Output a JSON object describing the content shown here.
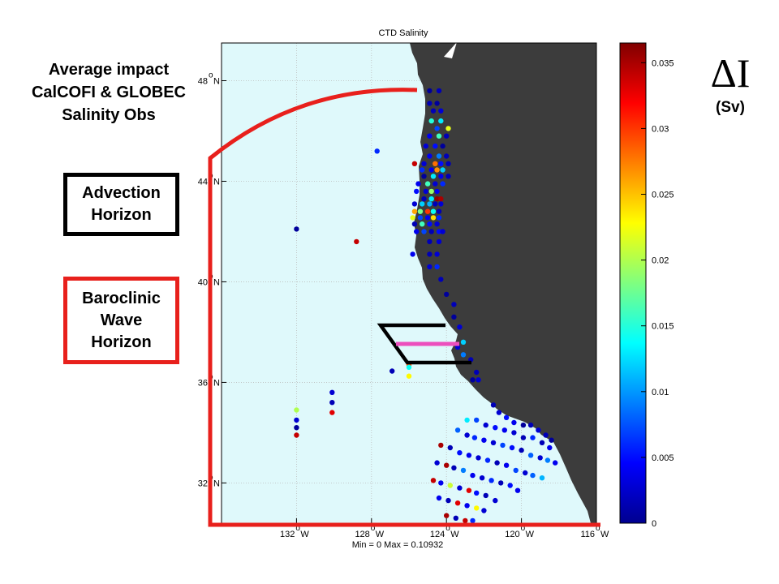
{
  "plot": {
    "title": "CTD Salinity",
    "footer": "Min = 0 Max = 0.10932",
    "lat_ticks": [
      {
        "value": 48,
        "deg": "48",
        "hemi": "N"
      },
      {
        "value": 44,
        "deg": "44",
        "hemi": "N"
      },
      {
        "value": 40,
        "deg": "40",
        "hemi": "N"
      },
      {
        "value": 36,
        "deg": "36",
        "hemi": "N"
      },
      {
        "value": 32,
        "deg": "32",
        "hemi": "N"
      }
    ],
    "lon_ticks": [
      {
        "value": -132,
        "deg": "132",
        "hemi": "W"
      },
      {
        "value": -128,
        "deg": "128",
        "hemi": "W"
      },
      {
        "value": -124,
        "deg": "124",
        "hemi": "W"
      },
      {
        "value": -120,
        "deg": "120",
        "hemi": "W"
      },
      {
        "value": -116,
        "deg": "116",
        "hemi": "W"
      }
    ],
    "lon_range": [
      -136,
      -116
    ],
    "lat_range": [
      30.4,
      49.5
    ],
    "colors": {
      "ocean": "#dff9fb",
      "land": "#3c3c3c",
      "grid": "#bcbcbc"
    }
  },
  "colorbar": {
    "ticks": [
      "0.035",
      "0.03",
      "0.025",
      "0.02",
      "0.015",
      "0.01",
      "0.005",
      "0"
    ],
    "tick_values": [
      0.035,
      0.03,
      0.025,
      0.02,
      0.015,
      0.01,
      0.005,
      0
    ],
    "range": [
      0,
      0.0365
    ],
    "colormap": "jet"
  },
  "annotation": {
    "title_lines": [
      "Average impact",
      "CalCOFI & GLOBEC",
      "Salinity Obs"
    ],
    "symbol": "ΔI",
    "unit": "(Sv)"
  },
  "legend": {
    "advection": {
      "lines": [
        "Advection",
        "Horizon"
      ],
      "color": "#000000"
    },
    "baroclinic": {
      "lines": [
        "Baroclinic",
        "Wave",
        "Horizon"
      ],
      "color": "#e8201c"
    }
  },
  "colors": {
    "red_curve": "#e8201c",
    "section_line": "#ec4fbd"
  },
  "stations": [
    {
      "lon": -124.9,
      "lat": 47.6,
      "v": 0.001
    },
    {
      "lon": -124.4,
      "lat": 47.6,
      "v": 0.002
    },
    {
      "lon": -124.9,
      "lat": 47.1,
      "v": 0.002
    },
    {
      "lon": -124.5,
      "lat": 47.1,
      "v": 0.001
    },
    {
      "lon": -124.7,
      "lat": 46.8,
      "v": 0.002
    },
    {
      "lon": -124.3,
      "lat": 46.8,
      "v": 0.003
    },
    {
      "lon": -124.8,
      "lat": 46.4,
      "v": 0.015
    },
    {
      "lon": -124.3,
      "lat": 46.4,
      "v": 0.013
    },
    {
      "lon": -124.5,
      "lat": 46.1,
      "v": 0.007
    },
    {
      "lon": -123.9,
      "lat": 46.1,
      "v": 0.022
    },
    {
      "lon": -124.9,
      "lat": 45.8,
      "v": 0.004
    },
    {
      "lon": -124.4,
      "lat": 45.8,
      "v": 0.016
    },
    {
      "lon": -124.0,
      "lat": 45.8,
      "v": 0.002
    },
    {
      "lon": -125.1,
      "lat": 45.4,
      "v": 0.003
    },
    {
      "lon": -124.6,
      "lat": 45.4,
      "v": 0.005
    },
    {
      "lon": -124.2,
      "lat": 45.4,
      "v": 0.001
    },
    {
      "lon": -127.7,
      "lat": 45.2,
      "v": 0.006
    },
    {
      "lon": -124.9,
      "lat": 45.0,
      "v": 0.004
    },
    {
      "lon": -124.4,
      "lat": 45.0,
      "v": 0.009
    },
    {
      "lon": -124.0,
      "lat": 45.0,
      "v": 0.002
    },
    {
      "lon": -125.7,
      "lat": 44.7,
      "v": 0.034
    },
    {
      "lon": -125.2,
      "lat": 44.7,
      "v": 0.003
    },
    {
      "lon": -124.6,
      "lat": 44.7,
      "v": 0.028
    },
    {
      "lon": -124.3,
      "lat": 44.7,
      "v": 0.005
    },
    {
      "lon": -123.9,
      "lat": 44.7,
      "v": 0.002
    },
    {
      "lon": -125.3,
      "lat": 44.45,
      "v": 0.006
    },
    {
      "lon": -124.8,
      "lat": 44.45,
      "v": 0.004
    },
    {
      "lon": -124.5,
      "lat": 44.45,
      "v": 0.027
    },
    {
      "lon": -124.2,
      "lat": 44.45,
      "v": 0.012
    },
    {
      "lon": -125.2,
      "lat": 44.2,
      "v": 0.001
    },
    {
      "lon": -124.7,
      "lat": 44.2,
      "v": 0.013
    },
    {
      "lon": -124.3,
      "lat": 44.2,
      "v": 0.004
    },
    {
      "lon": -123.9,
      "lat": 44.2,
      "v": 0.002
    },
    {
      "lon": -125.5,
      "lat": 43.9,
      "v": 0.004
    },
    {
      "lon": -125.0,
      "lat": 43.9,
      "v": 0.016
    },
    {
      "lon": -124.6,
      "lat": 43.9,
      "v": 0.003
    },
    {
      "lon": -124.2,
      "lat": 43.9,
      "v": 0.006
    },
    {
      "lon": -125.6,
      "lat": 43.6,
      "v": 0.005
    },
    {
      "lon": -125.1,
      "lat": 43.6,
      "v": 0.003
    },
    {
      "lon": -124.8,
      "lat": 43.6,
      "v": 0.019
    },
    {
      "lon": -124.5,
      "lat": 43.6,
      "v": 0.004
    },
    {
      "lon": -125.2,
      "lat": 43.3,
      "v": 0.002
    },
    {
      "lon": -124.8,
      "lat": 43.3,
      "v": 0.013
    },
    {
      "lon": -124.5,
      "lat": 43.3,
      "v": 0.036
    },
    {
      "lon": -124.3,
      "lat": 43.3,
      "v": 0.035
    },
    {
      "lon": -125.7,
      "lat": 43.1,
      "v": 0.003
    },
    {
      "lon": -125.3,
      "lat": 43.1,
      "v": 0.012
    },
    {
      "lon": -124.9,
      "lat": 43.1,
      "v": 0.011
    },
    {
      "lon": -124.6,
      "lat": 43.1,
      "v": 0.002
    },
    {
      "lon": -124.3,
      "lat": 43.1,
      "v": 0.003
    },
    {
      "lon": -125.7,
      "lat": 42.8,
      "v": 0.026
    },
    {
      "lon": -125.4,
      "lat": 42.8,
      "v": 0.018
    },
    {
      "lon": -125.0,
      "lat": 42.8,
      "v": 0.03
    },
    {
      "lon": -124.7,
      "lat": 42.8,
      "v": 0.014
    },
    {
      "lon": -124.4,
      "lat": 42.8,
      "v": 0.002
    },
    {
      "lon": -125.8,
      "lat": 42.55,
      "v": 0.022
    },
    {
      "lon": -125.4,
      "lat": 42.55,
      "v": 0.007
    },
    {
      "lon": -125.0,
      "lat": 42.55,
      "v": 0.004
    },
    {
      "lon": -124.7,
      "lat": 42.55,
      "v": 0.024
    },
    {
      "lon": -124.4,
      "lat": 42.55,
      "v": 0.006
    },
    {
      "lon": -125.7,
      "lat": 42.3,
      "v": 0.002
    },
    {
      "lon": -125.3,
      "lat": 42.3,
      "v": 0.016
    },
    {
      "lon": -124.9,
      "lat": 42.3,
      "v": 0.005
    },
    {
      "lon": -124.5,
      "lat": 42.3,
      "v": 0.003
    },
    {
      "lon": -125.6,
      "lat": 42.0,
      "v": 0.004
    },
    {
      "lon": -125.2,
      "lat": 42.0,
      "v": 0.007
    },
    {
      "lon": -124.8,
      "lat": 42.0,
      "v": 0.002
    },
    {
      "lon": -124.4,
      "lat": 42.0,
      "v": 0.005
    },
    {
      "lon": -124.2,
      "lat": 42.0,
      "v": 0.003
    },
    {
      "lon": -124.9,
      "lat": 41.6,
      "v": 0.002
    },
    {
      "lon": -124.4,
      "lat": 41.6,
      "v": 0.003
    },
    {
      "lon": -125.8,
      "lat": 41.1,
      "v": 0.004
    },
    {
      "lon": -124.9,
      "lat": 41.1,
      "v": 0.002
    },
    {
      "lon": -124.5,
      "lat": 41.1,
      "v": 0.003
    },
    {
      "lon": -132.0,
      "lat": 42.1,
      "v": 0.001
    },
    {
      "lon": -128.8,
      "lat": 41.6,
      "v": 0.034
    },
    {
      "lon": -124.9,
      "lat": 40.6,
      "v": 0.003
    },
    {
      "lon": -124.5,
      "lat": 40.6,
      "v": 0.006
    },
    {
      "lon": -124.3,
      "lat": 40.1,
      "v": 0.002
    },
    {
      "lon": -124.0,
      "lat": 39.5,
      "v": 0.001
    },
    {
      "lon": -123.6,
      "lat": 39.1,
      "v": 0.002
    },
    {
      "lon": -123.6,
      "lat": 38.6,
      "v": 0.001
    },
    {
      "lon": -123.3,
      "lat": 38.2,
      "v": 0.003
    },
    {
      "lon": -123.1,
      "lat": 37.6,
      "v": 0.012
    },
    {
      "lon": -123.4,
      "lat": 37.4,
      "v": 0.003
    },
    {
      "lon": -123.1,
      "lat": 37.1,
      "v": 0.009
    },
    {
      "lon": -122.7,
      "lat": 36.9,
      "v": 0.002
    },
    {
      "lon": -126.0,
      "lat": 36.7,
      "v": 0.029
    },
    {
      "lon": -126.0,
      "lat": 36.6,
      "v": 0.014
    },
    {
      "lon": -126.9,
      "lat": 36.45,
      "v": 0.002
    },
    {
      "lon": -126.0,
      "lat": 36.25,
      "v": 0.023
    },
    {
      "lon": -122.4,
      "lat": 36.4,
      "v": 0.002
    },
    {
      "lon": -122.3,
      "lat": 36.1,
      "v": 0.003
    },
    {
      "lon": -122.6,
      "lat": 36.1,
      "v": 0.001
    },
    {
      "lon": -130.1,
      "lat": 35.6,
      "v": 0.003
    },
    {
      "lon": -130.1,
      "lat": 35.2,
      "v": 0.002
    },
    {
      "lon": -130.1,
      "lat": 34.8,
      "v": 0.033
    },
    {
      "lon": -132.0,
      "lat": 34.9,
      "v": 0.02
    },
    {
      "lon": -132.0,
      "lat": 34.5,
      "v": 0.003
    },
    {
      "lon": -132.0,
      "lat": 34.2,
      "v": 0.001
    },
    {
      "lon": -132.0,
      "lat": 33.9,
      "v": 0.034
    },
    {
      "lon": -121.5,
      "lat": 35.1,
      "v": 0.002
    },
    {
      "lon": -121.2,
      "lat": 34.8,
      "v": 0.003
    },
    {
      "lon": -120.8,
      "lat": 34.6,
      "v": 0.005
    },
    {
      "lon": -120.4,
      "lat": 34.4,
      "v": 0.004
    },
    {
      "lon": -119.9,
      "lat": 34.3,
      "v": 0.001
    },
    {
      "lon": -119.5,
      "lat": 34.3,
      "v": 0.002
    },
    {
      "lon": -119.1,
      "lat": 34.1,
      "v": 0.003
    },
    {
      "lon": -118.7,
      "lat": 33.9,
      "v": 0.002
    },
    {
      "lon": -118.4,
      "lat": 33.7,
      "v": 0.001
    },
    {
      "lon": -122.9,
      "lat": 34.5,
      "v": 0.013
    },
    {
      "lon": -122.4,
      "lat": 34.5,
      "v": 0.007
    },
    {
      "lon": -121.9,
      "lat": 34.3,
      "v": 0.003
    },
    {
      "lon": -121.4,
      "lat": 34.2,
      "v": 0.005
    },
    {
      "lon": -120.9,
      "lat": 34.1,
      "v": 0.004
    },
    {
      "lon": -120.4,
      "lat": 34.0,
      "v": 0.003
    },
    {
      "lon": -119.9,
      "lat": 33.8,
      "v": 0.002
    },
    {
      "lon": -119.4,
      "lat": 33.8,
      "v": 0.006
    },
    {
      "lon": -118.9,
      "lat": 33.6,
      "v": 0.002
    },
    {
      "lon": -118.5,
      "lat": 33.4,
      "v": 0.004
    },
    {
      "lon": -123.4,
      "lat": 34.1,
      "v": 0.008
    },
    {
      "lon": -122.9,
      "lat": 33.9,
      "v": 0.003
    },
    {
      "lon": -122.5,
      "lat": 33.8,
      "v": 0.006
    },
    {
      "lon": -122.0,
      "lat": 33.7,
      "v": 0.004
    },
    {
      "lon": -121.5,
      "lat": 33.6,
      "v": 0.003
    },
    {
      "lon": -121.0,
      "lat": 33.5,
      "v": 0.007
    },
    {
      "lon": -120.5,
      "lat": 33.4,
      "v": 0.005
    },
    {
      "lon": -120.0,
      "lat": 33.3,
      "v": 0.002
    },
    {
      "lon": -119.5,
      "lat": 33.1,
      "v": 0.008
    },
    {
      "lon": -119.0,
      "lat": 33.0,
      "v": 0.003
    },
    {
      "lon": -118.6,
      "lat": 32.9,
      "v": 0.009
    },
    {
      "lon": -118.2,
      "lat": 32.8,
      "v": 0.004
    },
    {
      "lon": -124.3,
      "lat": 33.5,
      "v": 0.035
    },
    {
      "lon": -123.8,
      "lat": 33.4,
      "v": 0.002
    },
    {
      "lon": -123.3,
      "lat": 33.2,
      "v": 0.005
    },
    {
      "lon": -122.8,
      "lat": 33.1,
      "v": 0.004
    },
    {
      "lon": -122.3,
      "lat": 33.0,
      "v": 0.003
    },
    {
      "lon": -121.8,
      "lat": 32.9,
      "v": 0.006
    },
    {
      "lon": -121.3,
      "lat": 32.8,
      "v": 0.002
    },
    {
      "lon": -120.8,
      "lat": 32.7,
      "v": 0.004
    },
    {
      "lon": -120.3,
      "lat": 32.5,
      "v": 0.007
    },
    {
      "lon": -119.8,
      "lat": 32.4,
      "v": 0.003
    },
    {
      "lon": -119.4,
      "lat": 32.3,
      "v": 0.008
    },
    {
      "lon": -118.9,
      "lat": 32.2,
      "v": 0.011
    },
    {
      "lon": -124.5,
      "lat": 32.8,
      "v": 0.003
    },
    {
      "lon": -124.0,
      "lat": 32.7,
      "v": 0.035
    },
    {
      "lon": -123.6,
      "lat": 32.6,
      "v": 0.002
    },
    {
      "lon": -123.1,
      "lat": 32.5,
      "v": 0.009
    },
    {
      "lon": -122.6,
      "lat": 32.3,
      "v": 0.004
    },
    {
      "lon": -122.1,
      "lat": 32.2,
      "v": 0.003
    },
    {
      "lon": -121.6,
      "lat": 32.1,
      "v": 0.006
    },
    {
      "lon": -121.1,
      "lat": 32.0,
      "v": 0.002
    },
    {
      "lon": -120.6,
      "lat": 31.9,
      "v": 0.005
    },
    {
      "lon": -120.2,
      "lat": 31.7,
      "v": 0.004
    },
    {
      "lon": -124.7,
      "lat": 32.1,
      "v": 0.034
    },
    {
      "lon": -124.3,
      "lat": 32.0,
      "v": 0.004
    },
    {
      "lon": -123.8,
      "lat": 31.9,
      "v": 0.021
    },
    {
      "lon": -123.3,
      "lat": 31.8,
      "v": 0.003
    },
    {
      "lon": -122.8,
      "lat": 31.7,
      "v": 0.033
    },
    {
      "lon": -122.4,
      "lat": 31.6,
      "v": 0.005
    },
    {
      "lon": -121.9,
      "lat": 31.5,
      "v": 0.002
    },
    {
      "lon": -121.4,
      "lat": 31.3,
      "v": 0.003
    },
    {
      "lon": -124.4,
      "lat": 31.4,
      "v": 0.004
    },
    {
      "lon": -123.9,
      "lat": 31.3,
      "v": 0.002
    },
    {
      "lon": -123.4,
      "lat": 31.2,
      "v": 0.033
    },
    {
      "lon": -122.9,
      "lat": 31.1,
      "v": 0.004
    },
    {
      "lon": -122.4,
      "lat": 31.0,
      "v": 0.023
    },
    {
      "lon": -122.0,
      "lat": 30.9,
      "v": 0.003
    },
    {
      "lon": -124.0,
      "lat": 30.7,
      "v": 0.035
    },
    {
      "lon": -123.5,
      "lat": 30.6,
      "v": 0.002
    },
    {
      "lon": -123.0,
      "lat": 30.5,
      "v": 0.034
    },
    {
      "lon": -122.6,
      "lat": 30.5,
      "v": 0.006
    }
  ]
}
